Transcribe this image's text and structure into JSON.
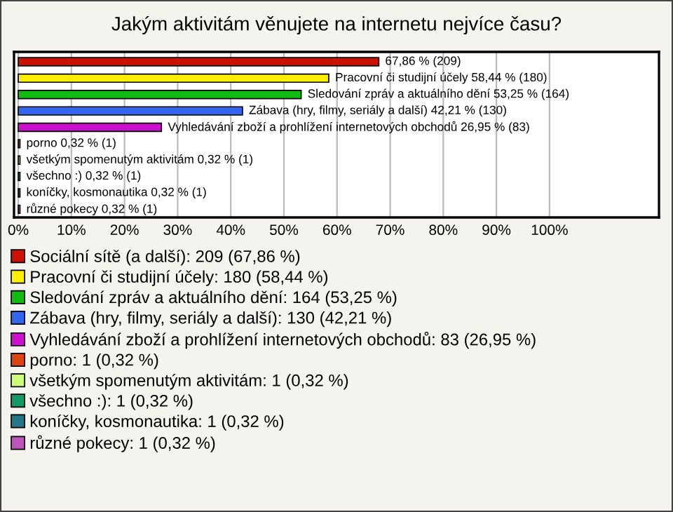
{
  "chart_data": {
    "type": "bar",
    "orientation": "horizontal",
    "title": "Jakým aktivitám věnujete na internetu nejvíce času?",
    "categories": [
      null,
      null,
      null,
      null,
      null,
      null,
      null,
      null,
      null,
      null
    ],
    "series": [
      {
        "name": "Sociální sítě (a další): 209 (67,86 %)",
        "color": "#cc1100",
        "values": [
          67.86,
          null,
          null,
          null,
          null,
          null,
          null,
          null,
          null,
          null
        ],
        "value_labels": [
          "67,86 % (209)",
          null,
          null,
          null,
          null,
          null,
          null,
          null,
          null,
          null
        ]
      },
      {
        "name": "Pracovní či studijní účely: 180 (58,44 %)",
        "color": "#ffee00",
        "values": [
          null,
          58.44,
          null,
          null,
          null,
          null,
          null,
          null,
          null,
          null
        ],
        "value_labels": [
          null,
          "Pracovní či studijní účely 58,44 % (180)",
          null,
          null,
          null,
          null,
          null,
          null,
          null,
          null
        ]
      },
      {
        "name": "Sledování zpráv a aktuálního dění: 164 (53,25 %)",
        "color": "#11bb11",
        "values": [
          null,
          null,
          53.25,
          null,
          null,
          null,
          null,
          null,
          null,
          null
        ],
        "value_labels": [
          null,
          null,
          "Sledování zpráv a aktuálního dění 53,25 % (164)",
          null,
          null,
          null,
          null,
          null,
          null,
          null
        ]
      },
      {
        "name": "Zábava (hry, filmy, seriály a další): 130 (42,21 %)",
        "color": "#3366ee",
        "values": [
          null,
          null,
          null,
          42.21,
          null,
          null,
          null,
          null,
          null,
          null
        ],
        "value_labels": [
          null,
          null,
          null,
          "Zábava (hry, filmy, seriály a další) 42,21 % (130)",
          null,
          null,
          null,
          null,
          null,
          null
        ]
      },
      {
        "name": "Vyhledávání zboží a prohlížení internetových obchodů: 83 (26,95 %)",
        "color": "#cc11cc",
        "values": [
          null,
          null,
          null,
          null,
          26.95,
          null,
          null,
          null,
          null,
          null
        ],
        "value_labels": [
          null,
          null,
          null,
          null,
          "Vyhledávání zboží a prohlížení internetových obchodů 26,95 % (83)",
          null,
          null,
          null,
          null,
          null
        ]
      },
      {
        "name": "porno: 1 (0,32 %)",
        "color": "#dd4411",
        "values": [
          null,
          null,
          null,
          null,
          null,
          0.32,
          null,
          null,
          null,
          null
        ],
        "value_labels": [
          null,
          null,
          null,
          null,
          null,
          "porno 0,32 % (1)",
          null,
          null,
          null,
          null
        ]
      },
      {
        "name": "všetkým spomenutým aktivitám: 1 (0,32 %)",
        "color": "#ccff77",
        "values": [
          null,
          null,
          null,
          null,
          null,
          null,
          0.32,
          null,
          null,
          null
        ],
        "value_labels": [
          null,
          null,
          null,
          null,
          null,
          null,
          "všetkým spomenutým aktivitám 0,32 % (1)",
          null,
          null,
          null
        ]
      },
      {
        "name": "všechno :): 1 (0,32 %)",
        "color": "#119966",
        "values": [
          null,
          null,
          null,
          null,
          null,
          null,
          null,
          0.32,
          null,
          null
        ],
        "value_labels": [
          null,
          null,
          null,
          null,
          null,
          null,
          null,
          "všechno :) 0,32 % (1)",
          null,
          null
        ]
      },
      {
        "name": "koníčky, kosmonautika: 1 (0,32 %)",
        "color": "#227788",
        "values": [
          null,
          null,
          null,
          null,
          null,
          null,
          null,
          null,
          0.32,
          null
        ],
        "value_labels": [
          null,
          null,
          null,
          null,
          null,
          null,
          null,
          null,
          "koníčky, kosmonautika 0,32 % (1)",
          null
        ]
      },
      {
        "name": "různé pokecy: 1 (0,32 %)",
        "color": "#bb55bb",
        "values": [
          null,
          null,
          null,
          null,
          null,
          null,
          null,
          null,
          null,
          0.32
        ],
        "value_labels": [
          null,
          null,
          null,
          null,
          null,
          null,
          null,
          null,
          null,
          "různé pokecy 0,32 % (1)"
        ]
      }
    ],
    "xlim": [
      -0.8,
      120.6
    ],
    "xticks": [
      {
        "value": 0,
        "label": "0%"
      },
      {
        "value": 10,
        "label": "10%"
      },
      {
        "value": 20,
        "label": "20%"
      },
      {
        "value": 30,
        "label": "30%"
      },
      {
        "value": 40,
        "label": "40%"
      },
      {
        "value": 50,
        "label": "50%"
      },
      {
        "value": 60,
        "label": "60%"
      },
      {
        "value": 70,
        "label": "70%"
      },
      {
        "value": 80,
        "label": "80%"
      },
      {
        "value": 90,
        "label": "90%"
      },
      {
        "value": 100,
        "label": "100%"
      }
    ],
    "grid": "x",
    "legend": "bottom",
    "tick_labels": "x"
  }
}
